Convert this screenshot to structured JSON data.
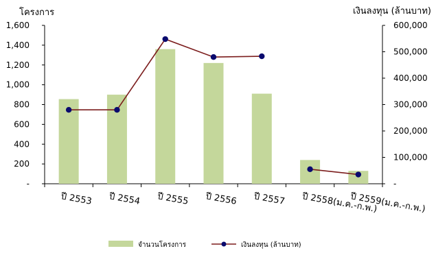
{
  "chart_data": {
    "type": "bar",
    "categories": [
      "ปี 2553",
      "ปี 2554",
      "ปี 2555",
      "ปี 2556",
      "ปี 2557",
      "ปี 2558(ม.ค.-ก.พ.)",
      "ปี 2559(ม.ค.-ก.พ.)"
    ],
    "y_left": {
      "label": "โครงการ",
      "ylim": [
        0,
        1600
      ],
      "ticks": [
        0,
        200,
        400,
        600,
        800,
        1000,
        1200,
        1400,
        1600
      ],
      "tick_labels": [
        "-",
        "200",
        "400",
        "600",
        "800",
        "1,000",
        "1,200",
        "1,400",
        "1,600"
      ]
    },
    "y_right": {
      "label": "เงินลงทุน (ล้านบาท)",
      "ylim": [
        0,
        600000
      ],
      "ticks": [
        0,
        100000,
        200000,
        300000,
        400000,
        500000,
        600000
      ],
      "tick_labels": [
        "-",
        "100,000",
        "200,000",
        "300,000",
        "400,000",
        "500,000",
        "600,000"
      ]
    },
    "series": [
      {
        "name": "จำนวนโครงการ",
        "kind": "bar",
        "axis": "left",
        "color": "#c4d79b",
        "values": [
          855,
          900,
          1360,
          1220,
          910,
          240,
          130
        ]
      },
      {
        "name": "เงินลงทุน (ล้านบาท)",
        "kind": "line",
        "axis": "right",
        "line_color": "#7b1c1c",
        "marker_color": "#0a0a6e",
        "segments": [
          {
            "categories": [
              0,
              1,
              2,
              3,
              4
            ],
            "values": [
              280000,
              280000,
              548000,
              480000,
              483000
            ]
          },
          {
            "categories": [
              5,
              6
            ],
            "values": [
              55000,
              35000
            ]
          }
        ]
      }
    ],
    "legend_position": "bottom",
    "grid": false
  }
}
